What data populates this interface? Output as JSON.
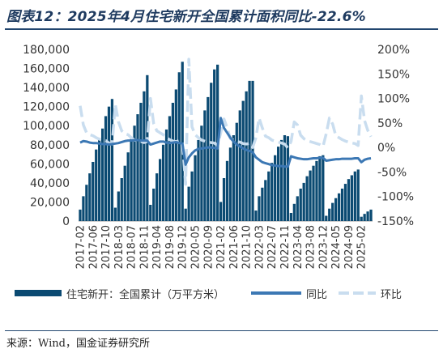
{
  "title": "图表12：2025年4月住宅新开全国累计面积同比-22.6%",
  "source": "来源：Wind，国金证券研究所",
  "colors": {
    "bars": "#0b4a72",
    "yoy": "#3c78b4",
    "mom": "#c9ddef",
    "title": "#1e3a5f",
    "rule": "#22466f"
  },
  "legend": [
    {
      "label": "住宅新开：全国累计（万平方米）",
      "style": "bar"
    },
    {
      "label": "同比",
      "style": "line"
    },
    {
      "label": "环比",
      "style": "dash"
    }
  ],
  "chart_data": {
    "type": "bar+line",
    "title": "图表12：2025年4月住宅新开全国累计面积同比-22.6%",
    "legend_position": "bottom",
    "grid": false,
    "x_tick_labels": [
      "2017-02",
      "2017-06",
      "2017-10",
      "2018-03",
      "2018-07",
      "2018-11",
      "2019-04",
      "2019-08",
      "2019-12",
      "2020-05",
      "2020-09",
      "2021-02",
      "2021-06",
      "2021-10",
      "2022-03",
      "2022-07",
      "2022-11",
      "2023-04",
      "2023-08",
      "2023-12",
      "2024-05",
      "2024-09",
      "2025-02"
    ],
    "y_left": {
      "ticks": [
        "0",
        "20,000",
        "40,000",
        "60,000",
        "80,000",
        "100,000",
        "120,000",
        "140,000",
        "160,000",
        "180,000"
      ],
      "range": [
        0,
        180000
      ]
    },
    "y_right": {
      "ticks": [
        "-150%",
        "-100%",
        "-50%",
        "0%",
        "50%",
        "100%",
        "150%",
        "200%"
      ],
      "range": [
        -150,
        200
      ]
    },
    "series": [
      {
        "name": "住宅新开：全国累计（万平方米）",
        "axis": "left",
        "type": "bar",
        "values": [
          [
            12000,
            26000,
            38000,
            50000,
            62000,
            75000,
            85000,
            97000,
            110000,
            120000,
            128000
          ],
          [
            14000,
            31000,
            45000,
            58000,
            72000,
            86000,
            100000,
            112000,
            124000,
            136000,
            153000
          ],
          [
            17000,
            34000,
            50000,
            65000,
            80000,
            96000,
            110000,
            124000,
            138000,
            156000,
            167000
          ],
          [
            13000,
            36000,
            52000,
            69000,
            85000,
            100000,
            116000,
            130000,
            145000,
            159000,
            164000
          ],
          [
            20000,
            45000,
            63000,
            77000,
            90000,
            103000,
            116000,
            126000,
            136000,
            147000,
            147000
          ],
          [
            11000,
            26000,
            35000,
            43000,
            52000,
            61000,
            69000,
            78000,
            85000,
            90000,
            89000
          ],
          [
            8500,
            18000,
            26000,
            34000,
            40000,
            47000,
            53000,
            58000,
            63000,
            68000,
            69000
          ],
          [
            5500,
            13000,
            19000,
            24000,
            29000,
            34000,
            39000,
            44000,
            48000,
            52000,
            54000
          ],
          [
            4500,
            7500,
            10000,
            12000
          ]
        ]
      },
      {
        "name": "同比",
        "axis": "right",
        "type": "line",
        "values": [
          10,
          13,
          12,
          10,
          9,
          9,
          8,
          7,
          7,
          6,
          7,
          8,
          9,
          11,
          13,
          14,
          14,
          15,
          15,
          14,
          14,
          14,
          6,
          8,
          10,
          12,
          12,
          10,
          9,
          10,
          11,
          9,
          8,
          -35,
          -20,
          -12,
          -6,
          -3,
          -2,
          -1,
          0,
          0,
          -1,
          -2,
          60,
          40,
          30,
          20,
          12,
          6,
          2,
          -2,
          -5,
          -7,
          -10,
          -20,
          -25,
          -30,
          -32,
          -34,
          -36,
          -37,
          -38,
          -38,
          -39,
          -39,
          -18,
          -20,
          -22,
          -23,
          -24,
          -24,
          -23,
          -22,
          -22,
          -21,
          -21,
          -27,
          -26,
          -25,
          -24,
          -24,
          -23,
          -23,
          -23,
          -23,
          -22,
          -22,
          -30,
          -25,
          -23,
          -22
        ]
      },
      {
        "name": "环比",
        "axis": "right",
        "type": "dashed-line",
        "values": [
          85,
          46,
          30,
          26,
          24,
          20,
          17,
          15,
          14,
          9,
          7,
          88,
          52,
          34,
          28,
          26,
          20,
          15,
          13,
          12,
          10,
          12,
          100,
          49,
          34,
          30,
          26,
          20,
          16,
          13,
          12,
          14,
          8,
          -75,
          180,
          42,
          26,
          20,
          15,
          13,
          11,
          10,
          9,
          4,
          30,
          58,
          40,
          18,
          15,
          12,
          11,
          8,
          7,
          8,
          0,
          20,
          60,
          40,
          23,
          20,
          15,
          13,
          11,
          9,
          7,
          -1,
          12,
          52,
          46,
          25,
          18,
          14,
          12,
          10,
          8,
          6,
          2,
          28,
          60,
          48,
          24,
          20,
          16,
          13,
          11,
          9,
          8,
          4,
          105,
          55,
          35,
          22
        ]
      }
    ]
  }
}
